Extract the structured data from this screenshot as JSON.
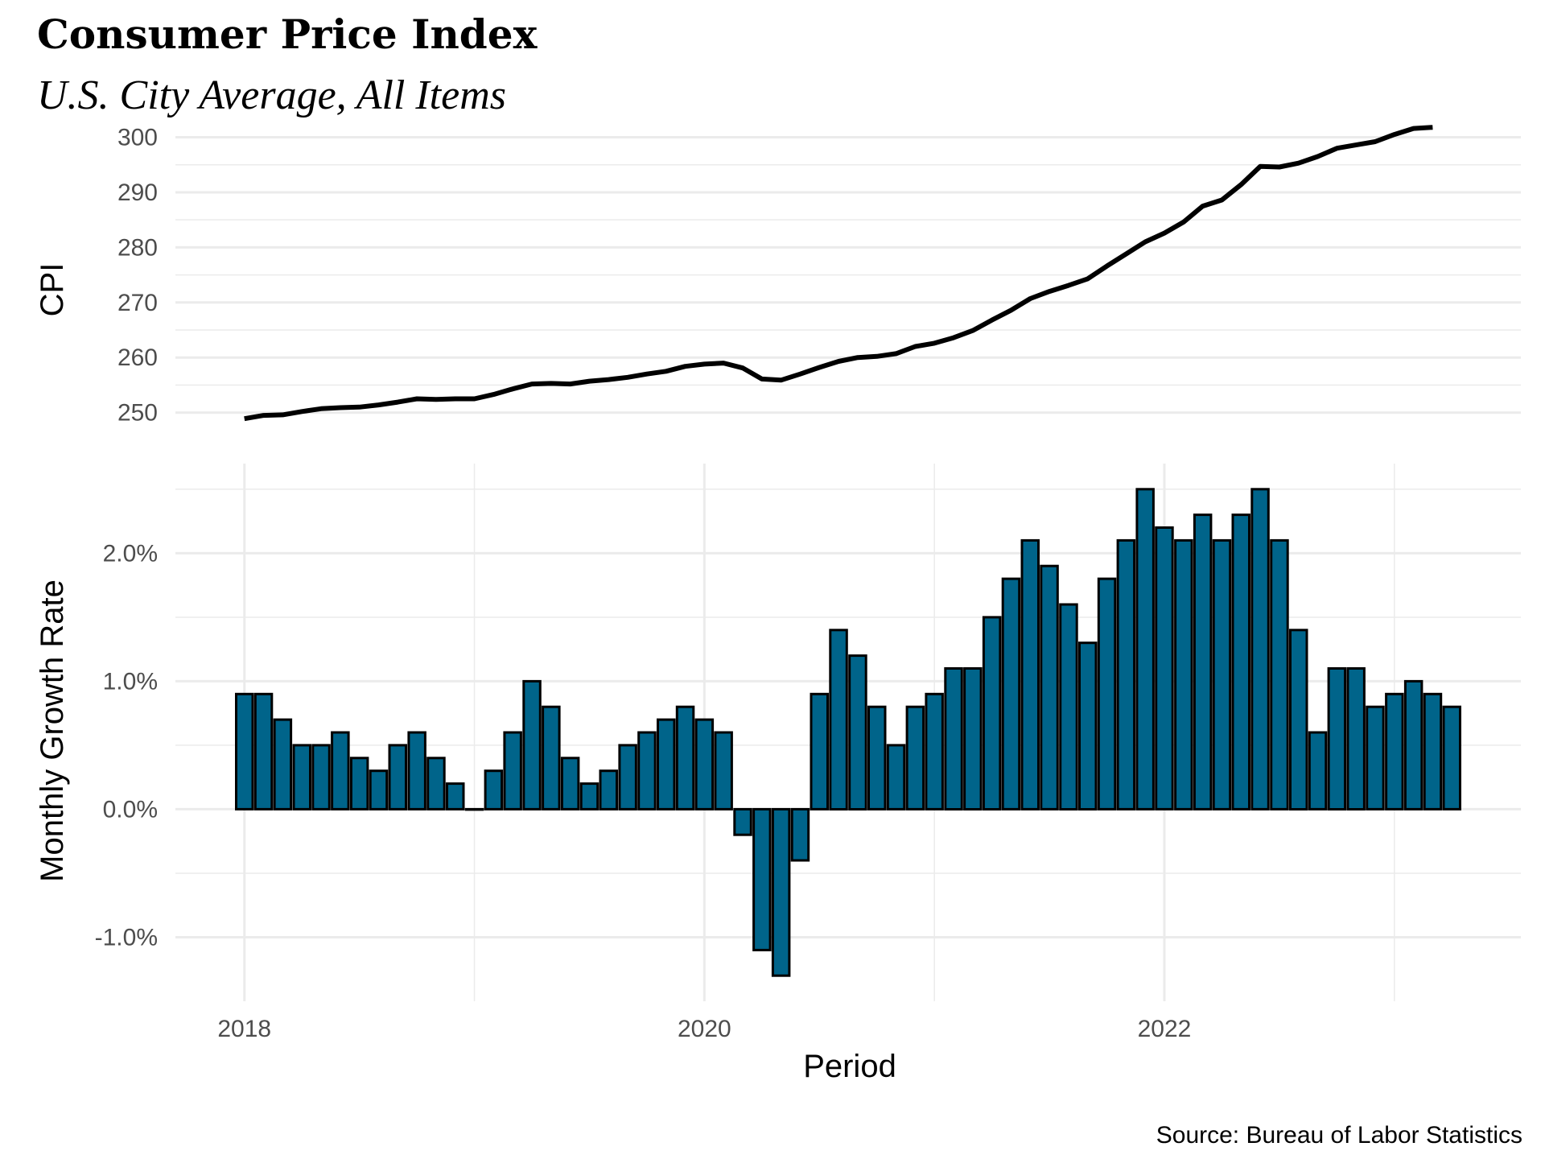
{
  "chart_data": [
    {
      "type": "line",
      "title": "Consumer Price Index",
      "subtitle": "U.S. City Average, All Items",
      "ylabel": "CPI",
      "yticks": [
        250,
        260,
        270,
        280,
        290,
        300
      ],
      "ylim": [
        246,
        303
      ],
      "x_start": "2018-01",
      "series": [
        {
          "name": "CPI",
          "values": [
            248.9,
            249.5,
            249.6,
            250.2,
            250.7,
            250.9,
            251.0,
            251.4,
            251.9,
            252.5,
            252.4,
            252.5,
            252.5,
            253.3,
            254.3,
            255.2,
            255.3,
            255.2,
            255.7,
            256.0,
            256.4,
            257.0,
            257.5,
            258.4,
            258.8,
            259.0,
            258.1,
            256.1,
            255.9,
            257.0,
            258.2,
            259.3,
            260.0,
            260.2,
            260.7,
            262.0,
            262.6,
            263.6,
            264.9,
            266.8,
            268.6,
            270.7,
            272.0,
            273.1,
            274.3,
            276.6,
            278.8,
            281.0,
            282.6,
            284.6,
            287.5,
            288.6,
            291.4,
            294.7,
            294.6,
            295.3,
            296.5,
            298.0,
            298.6,
            299.2,
            300.5,
            301.6,
            301.8
          ]
        }
      ]
    },
    {
      "type": "bar",
      "ylabel": "Monthly Growth Rate",
      "xlabel": "Period",
      "yticks": [
        -1.0,
        0.0,
        1.0,
        2.0
      ],
      "ytick_labels": [
        "-1.0%",
        "0.0%",
        "1.0%",
        "2.0%"
      ],
      "xticks": [
        "2018",
        "2020",
        "2022"
      ],
      "xlim": [
        2017.7,
        2023.55
      ],
      "ylim": [
        -1.5,
        2.7
      ],
      "x_start": "2018-01",
      "fill_color": "#00648a",
      "series": [
        {
          "name": "Monthly Growth Rate (%)",
          "values": [
            0.9,
            0.9,
            0.7,
            0.5,
            0.5,
            0.6,
            0.4,
            0.3,
            0.5,
            0.6,
            0.4,
            0.2,
            0.0,
            0.3,
            0.6,
            1.0,
            0.8,
            0.4,
            0.2,
            0.3,
            0.5,
            0.6,
            0.7,
            0.8,
            0.7,
            0.6,
            -0.2,
            -1.1,
            -1.3,
            -0.4,
            0.9,
            1.4,
            1.2,
            0.8,
            0.5,
            0.8,
            0.9,
            1.1,
            1.1,
            1.5,
            1.8,
            2.1,
            1.9,
            1.6,
            1.3,
            1.8,
            2.1,
            2.5,
            2.2,
            2.1,
            2.3,
            2.1,
            2.3,
            2.5,
            2.1,
            1.4,
            0.6,
            1.1,
            1.1,
            0.8,
            0.9,
            1.0,
            0.9,
            0.8
          ]
        }
      ]
    }
  ],
  "caption": "Source: Bureau of Labor Statistics"
}
